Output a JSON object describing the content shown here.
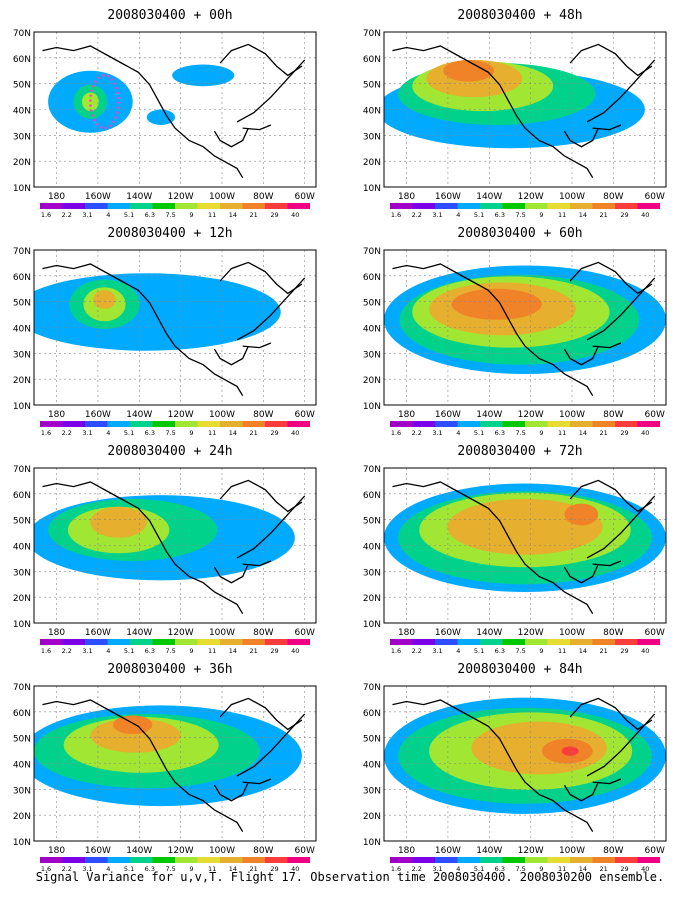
{
  "panels": [
    {
      "title": "2008030400 + 00h",
      "blobs": [
        [
          0.2,
          0.45,
          0.3,
          0.4,
          1
        ],
        [
          0.2,
          0.45,
          0.12,
          0.22,
          2
        ],
        [
          0.2,
          0.45,
          0.06,
          0.12,
          3
        ],
        [
          0.45,
          0.55,
          0.1,
          0.1,
          1
        ],
        [
          0.6,
          0.28,
          0.22,
          0.14,
          1
        ]
      ],
      "dotted_contour": true
    },
    {
      "title": "2008030400 + 48h",
      "blobs": [
        [
          0.45,
          0.5,
          0.95,
          0.5,
          1
        ],
        [
          0.4,
          0.4,
          0.7,
          0.4,
          2
        ],
        [
          0.35,
          0.35,
          0.5,
          0.32,
          3
        ],
        [
          0.32,
          0.3,
          0.34,
          0.24,
          4
        ],
        [
          0.3,
          0.25,
          0.18,
          0.14,
          5
        ]
      ]
    },
    {
      "title": "2008030400 + 12h",
      "blobs": [
        [
          0.4,
          0.4,
          0.95,
          0.5,
          1
        ],
        [
          0.25,
          0.35,
          0.25,
          0.32,
          2
        ],
        [
          0.25,
          0.35,
          0.15,
          0.22,
          3
        ],
        [
          0.25,
          0.32,
          0.08,
          0.12,
          4
        ]
      ]
    },
    {
      "title": "2008030400 + 60h",
      "blobs": [
        [
          0.5,
          0.45,
          1.0,
          0.7,
          1
        ],
        [
          0.48,
          0.45,
          0.85,
          0.58,
          2
        ],
        [
          0.45,
          0.4,
          0.7,
          0.46,
          3
        ],
        [
          0.42,
          0.38,
          0.52,
          0.34,
          4
        ],
        [
          0.4,
          0.35,
          0.32,
          0.2,
          5
        ]
      ]
    },
    {
      "title": "2008030400 + 24h",
      "blobs": [
        [
          0.45,
          0.45,
          0.95,
          0.55,
          1
        ],
        [
          0.35,
          0.4,
          0.6,
          0.4,
          2
        ],
        [
          0.3,
          0.4,
          0.36,
          0.3,
          3
        ],
        [
          0.3,
          0.35,
          0.2,
          0.2,
          4
        ]
      ]
    },
    {
      "title": "2008030400 + 72h",
      "blobs": [
        [
          0.5,
          0.45,
          1.0,
          0.7,
          1
        ],
        [
          0.5,
          0.45,
          0.9,
          0.6,
          2
        ],
        [
          0.5,
          0.4,
          0.75,
          0.48,
          3
        ],
        [
          0.5,
          0.38,
          0.55,
          0.36,
          4
        ],
        [
          0.7,
          0.3,
          0.12,
          0.14,
          5
        ]
      ]
    },
    {
      "title": "2008030400 + 36h",
      "blobs": [
        [
          0.45,
          0.45,
          1.0,
          0.65,
          1
        ],
        [
          0.4,
          0.42,
          0.8,
          0.48,
          2
        ],
        [
          0.38,
          0.38,
          0.55,
          0.36,
          3
        ],
        [
          0.36,
          0.32,
          0.32,
          0.22,
          4
        ],
        [
          0.35,
          0.25,
          0.14,
          0.12,
          5
        ]
      ]
    },
    {
      "title": "2008030400 + 84h",
      "blobs": [
        [
          0.5,
          0.45,
          1.0,
          0.75,
          1
        ],
        [
          0.5,
          0.45,
          0.9,
          0.62,
          2
        ],
        [
          0.52,
          0.42,
          0.72,
          0.5,
          3
        ],
        [
          0.55,
          0.4,
          0.48,
          0.34,
          4
        ],
        [
          0.65,
          0.42,
          0.18,
          0.16,
          5
        ],
        [
          0.66,
          0.42,
          0.06,
          0.06,
          6
        ]
      ]
    }
  ],
  "y_axis_labels": [
    "70N",
    "60N",
    "50N",
    "40N",
    "30N",
    "20N",
    "10N"
  ],
  "x_axis_labels": [
    "180",
    "160W",
    "140W",
    "120W",
    "100W",
    "80W",
    "60W"
  ],
  "colorbar_labels": [
    "1.6",
    "2.2",
    "3.1",
    "4",
    "5.1",
    "6.3",
    "7.5",
    "9",
    "11",
    "14",
    "21",
    "29",
    "40"
  ],
  "colorbar_colors": [
    "#a000c8",
    "#7a00e8",
    "#2d4dff",
    "#00aaff",
    "#00d28c",
    "#00c800",
    "#a0e632",
    "#e6dc32",
    "#e6af2d",
    "#f08228",
    "#fa3c3c",
    "#f00082"
  ],
  "blob_levels": [
    "#a000c8",
    "#00aaff",
    "#00d28c",
    "#a0e632",
    "#e6af2d",
    "#f08228",
    "#fa3c3c"
  ],
  "footer": "Signal Variance for u,v,T. Flight 17. Observation time 2008030400. 2008030200 ensemble."
}
